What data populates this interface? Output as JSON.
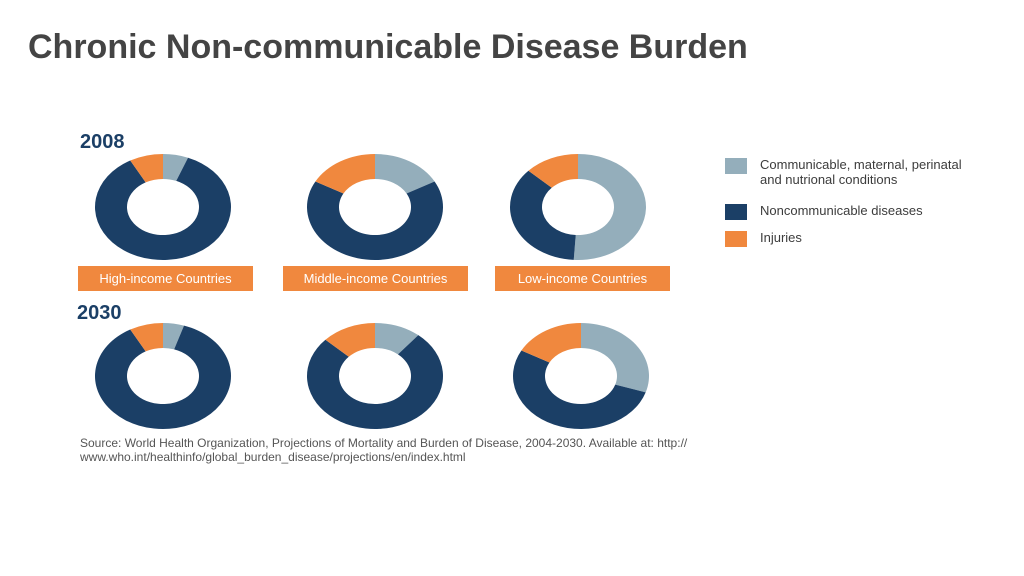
{
  "title": "Chronic Non-communicable Disease Burden",
  "colors": {
    "communicable": "#94aebb",
    "noncommunicable": "#1b3f66",
    "injuries": "#f0883e"
  },
  "legend": [
    {
      "label": "Communicable, maternal, perinatal and nutrional conditions",
      "color": "#94aebb"
    },
    {
      "label": "Noncommunicable diseases",
      "color": "#1b3f66"
    },
    {
      "label": "Injuries",
      "color": "#f0883e"
    }
  ],
  "source": "Source: World Health Organization, Projections of Mortality and Burden of Disease, 2004-2030. Available at: http:// www.who.int/healthinfo/global_burden_disease/projections/en/index.html",
  "chart_data": {
    "type": "pie",
    "years": [
      "2008",
      "2030"
    ],
    "groups": [
      "High-income Countries",
      "Middle-income Countries",
      "Low-income Countries"
    ],
    "series_order": [
      "Communicable, maternal, perinatal and nutrional conditions",
      "Noncommunicable diseases",
      "Injuries"
    ],
    "data": {
      "2008": [
        {
          "group": "High-income Countries",
          "values": [
            6,
            86,
            8
          ]
        },
        {
          "group": "Middle-income Countries",
          "values": [
            17,
            66,
            17
          ]
        },
        {
          "group": "Low-income Countries",
          "values": [
            51,
            36,
            13
          ]
        }
      ],
      "2030": [
        {
          "group": "High-income Countries",
          "values": [
            5,
            87,
            8
          ]
        },
        {
          "group": "Middle-income Countries",
          "values": [
            11,
            76,
            13
          ]
        },
        {
          "group": "Low-income Countries",
          "values": [
            30,
            53,
            17
          ]
        }
      ]
    }
  }
}
